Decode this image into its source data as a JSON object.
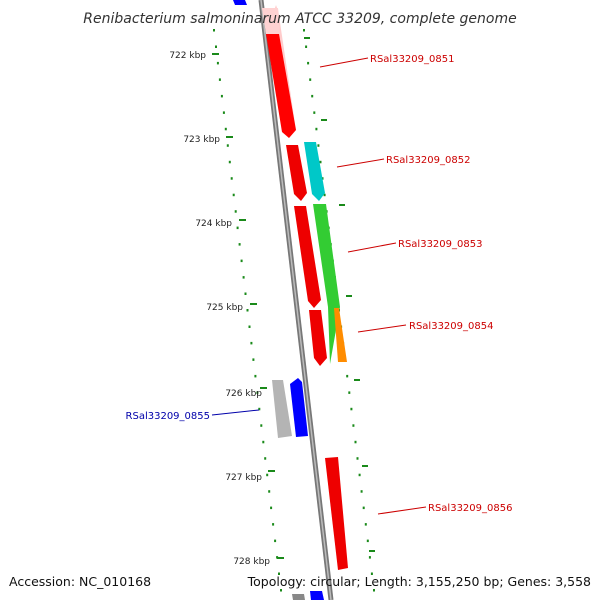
{
  "title": "Renibacterium salmoninarum ATCC 33209, complete genome",
  "footer": {
    "accession": "Accession: NC_010168",
    "topology": "Topology: circular; Length: 3,155,250 bp; Genes: 3,558"
  },
  "colors": {
    "backbone": "#808080",
    "tick": "#1a8a1a",
    "label_forward": "#cc0000",
    "label_reverse": "#0000aa"
  },
  "ticks": [
    {
      "kbp": 722,
      "label": "722 kbp"
    },
    {
      "kbp": 723,
      "label": "723 kbp"
    },
    {
      "kbp": 724,
      "label": "724 kbp"
    },
    {
      "kbp": 725,
      "label": "725 kbp"
    },
    {
      "kbp": 726,
      "label": "726 kbp"
    },
    {
      "kbp": 727,
      "label": "727 kbp"
    },
    {
      "kbp": 728,
      "label": "728 kbp"
    }
  ],
  "genes": [
    {
      "id": "RSal33209_0851",
      "label": "RSal33209_0851",
      "strand": "+",
      "color": "#ff0000"
    },
    {
      "id": "RSal33209_0852",
      "label": "RSal33209_0852",
      "strand": "+",
      "color": "#ff0000",
      "extra_color": "#00c8c8"
    },
    {
      "id": "RSal33209_0853",
      "label": "RSal33209_0853",
      "strand": "+",
      "color": "#ff0000",
      "extra_color": "#33cc33"
    },
    {
      "id": "RSal33209_0854",
      "label": "RSal33209_0854",
      "strand": "+",
      "color": "#ff0000",
      "extra_color": "#ff8c00"
    },
    {
      "id": "RSal33209_0855",
      "label": "RSal33209_0855",
      "strand": "-",
      "color": "#0000ff",
      "extra_color": "#b4b4b4"
    },
    {
      "id": "RSal33209_0856",
      "label": "RSal33209_0856",
      "strand": "+",
      "color": "#ff0000"
    }
  ]
}
